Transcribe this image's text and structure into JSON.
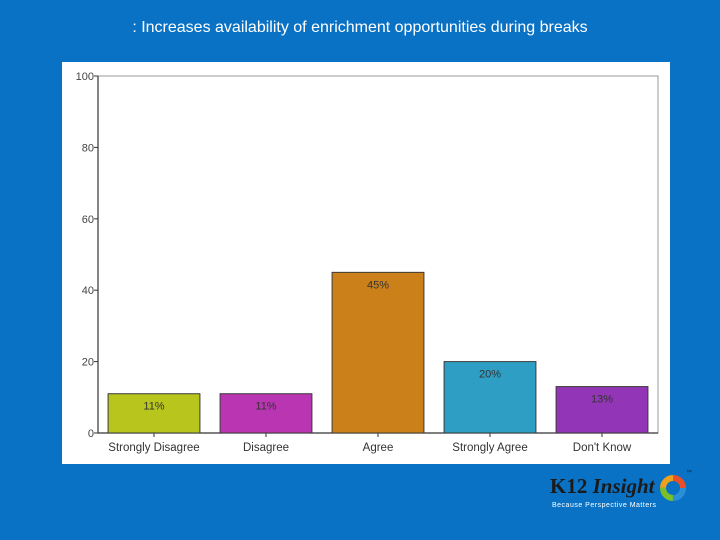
{
  "slide": {
    "title": ": Increases availability of enrichment opportunities during breaks"
  },
  "chart_data": {
    "type": "bar",
    "categories": [
      "Strongly Disagree",
      "Disagree",
      "Agree",
      "Strongly Agree",
      "Don't Know"
    ],
    "values": [
      11,
      11,
      45,
      20,
      13
    ],
    "data_labels": [
      "11%",
      "11%",
      "45%",
      "20%",
      "13%"
    ],
    "colors": [
      "#b8c51c",
      "#b935b2",
      "#cc8019",
      "#2f9ec4",
      "#9335b7"
    ],
    "ylim": [
      0,
      100
    ],
    "yticks": [
      0,
      20,
      40,
      60,
      80,
      100
    ],
    "ytick_labels": [
      "0",
      "20",
      "40",
      "60",
      "80",
      "100"
    ],
    "grid": false,
    "legend": "none"
  },
  "logo": {
    "k12": "K12",
    "insight": "Insight",
    "tm": "™",
    "tagline": "Because Perspective Matters",
    "ring_colors": [
      "#2b8fd6",
      "#7bbf2a",
      "#f0a11c",
      "#e8502a"
    ]
  }
}
